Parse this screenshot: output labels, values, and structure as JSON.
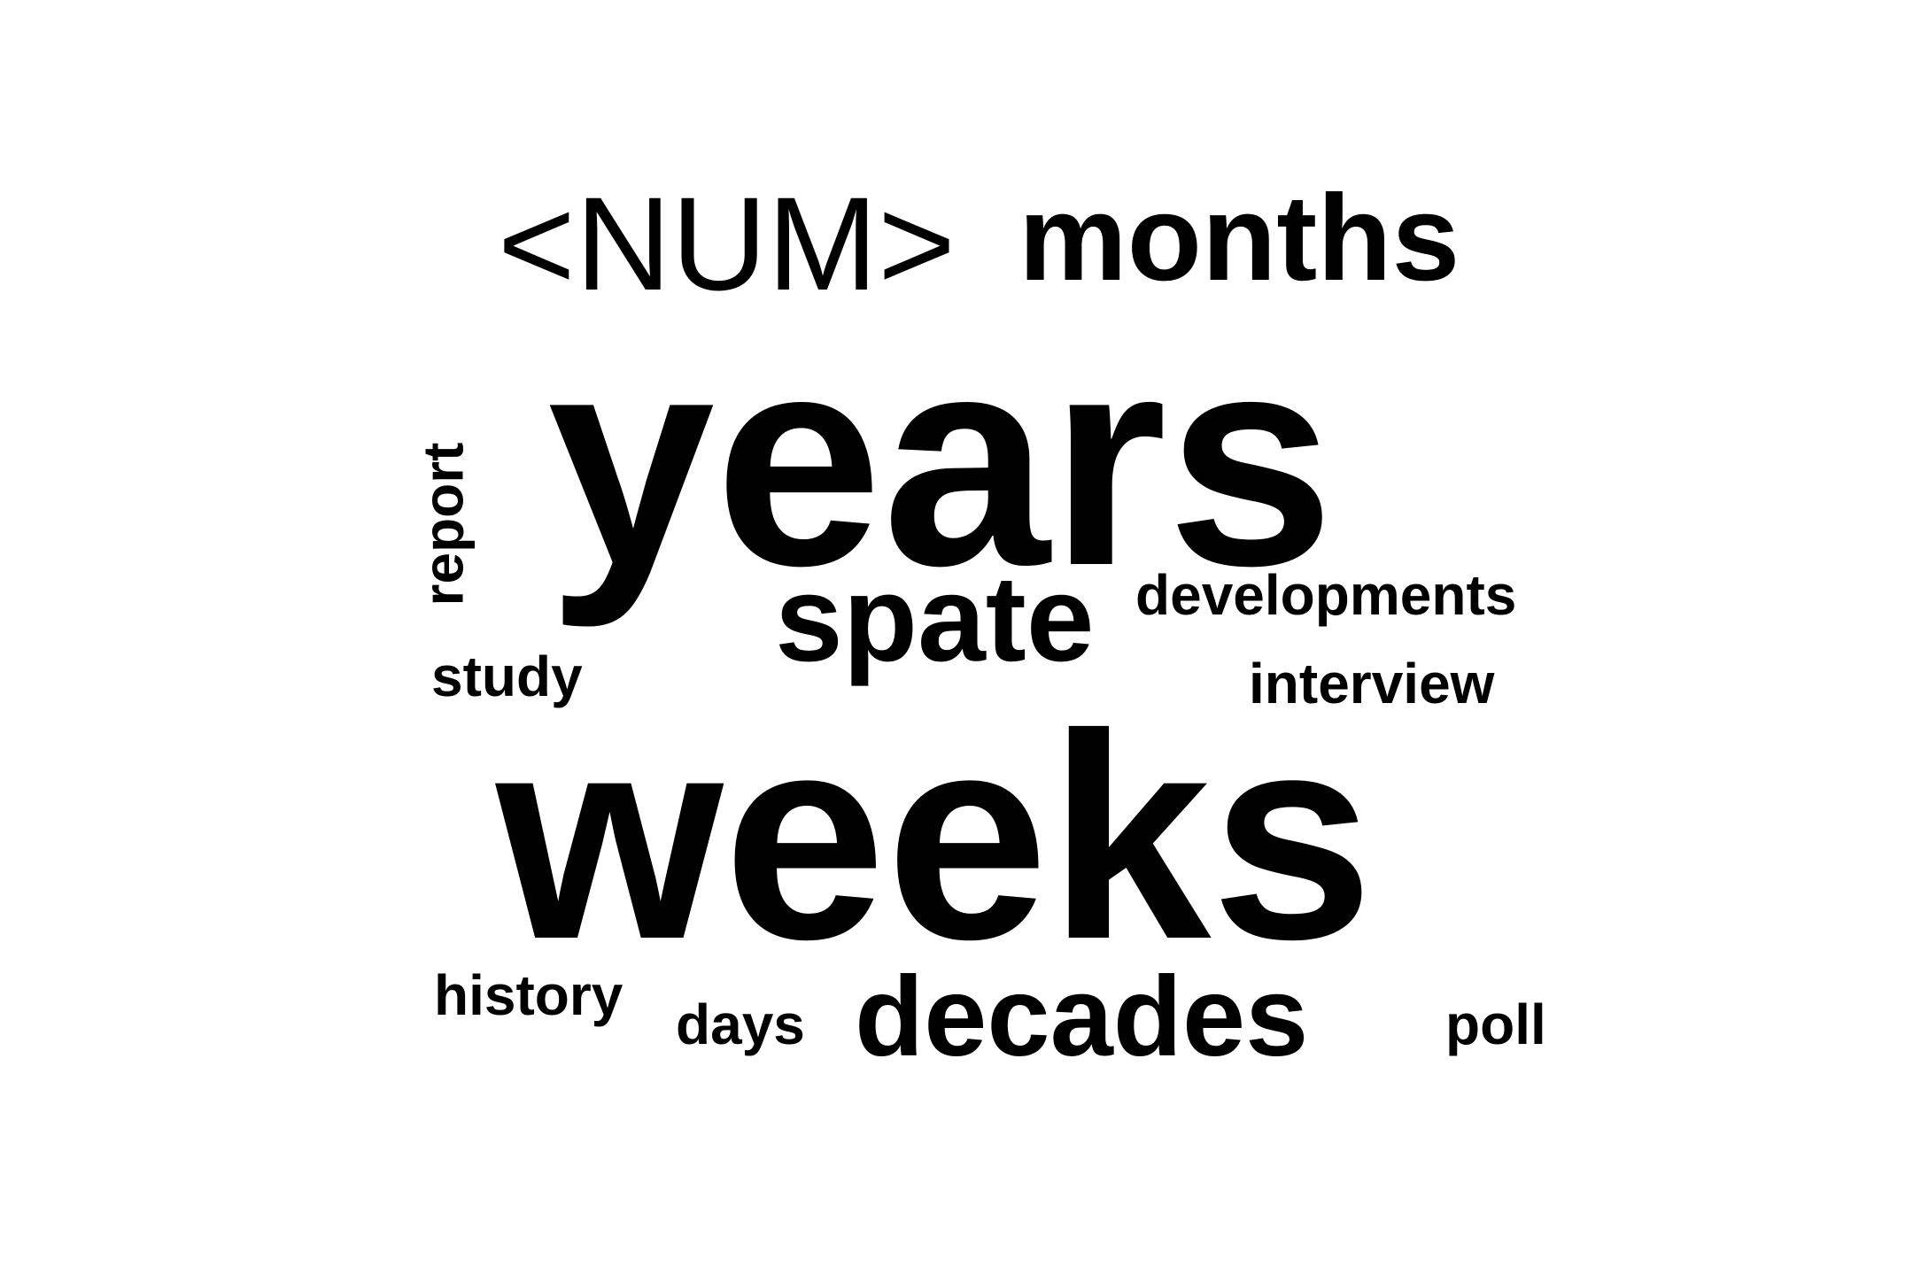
{
  "word_cloud": {
    "text_color": "#000000",
    "background_color": "#ffffff",
    "words": {
      "num": "<NUM>",
      "months": "months",
      "years": "years",
      "report": "report",
      "spate": "spate",
      "developments": "developments",
      "study": "study",
      "interview": "interview",
      "weeks": "weeks",
      "history": "history",
      "days": "days",
      "decades": "decades",
      "poll": "poll"
    }
  }
}
